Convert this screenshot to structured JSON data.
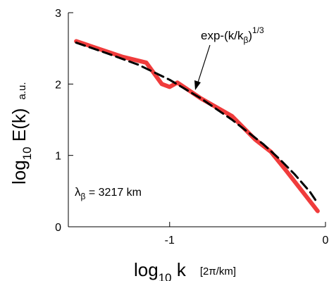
{
  "chart_data": {
    "type": "line",
    "xlim": [
      -1.65,
      0
    ],
    "ylim": [
      0,
      3
    ],
    "xticks": [
      {
        "value": -1,
        "label": "-1"
      },
      {
        "value": 0,
        "label": "0"
      }
    ],
    "yticks": [
      {
        "value": 0,
        "label": "0"
      },
      {
        "value": 1,
        "label": "1"
      },
      {
        "value": 2,
        "label": "2"
      },
      {
        "value": 3,
        "label": "3"
      }
    ],
    "xlabel": {
      "base": "log",
      "sub": "10",
      "var": " k",
      "unit": "[2π/km]"
    },
    "ylabel": {
      "base": "log",
      "sub": "10",
      "var": " E(k)",
      "unit": "a.u."
    },
    "grid": false,
    "series": [
      {
        "color": "#f03c3c",
        "style": "solid",
        "x": [
          -1.6,
          -1.3,
          -1.15,
          -1.05,
          -1.0,
          -0.95,
          -0.8,
          -0.6,
          -0.45,
          -0.35,
          -0.25,
          -0.15,
          -0.05
        ],
        "y": [
          2.6,
          2.38,
          2.3,
          2.0,
          1.96,
          2.02,
          1.8,
          1.55,
          1.22,
          1.05,
          0.78,
          0.5,
          0.22
        ]
      },
      {
        "color": "#000000",
        "style": "dashed",
        "x": [
          -1.6,
          -1.4,
          -1.2,
          -1.0,
          -0.8,
          -0.6,
          -0.4,
          -0.3,
          -0.2,
          -0.1,
          -0.05
        ],
        "y": [
          2.58,
          2.43,
          2.27,
          2.06,
          1.8,
          1.5,
          1.16,
          0.96,
          0.74,
          0.49,
          0.33
        ]
      }
    ],
    "annotations": {
      "fit": {
        "main": "exp-(k/k",
        "sub": "β",
        "close": ")",
        "sup": "1/3"
      },
      "lambda": {
        "sym": "λ",
        "sub": "β",
        "text": " = 3217 km"
      }
    }
  }
}
